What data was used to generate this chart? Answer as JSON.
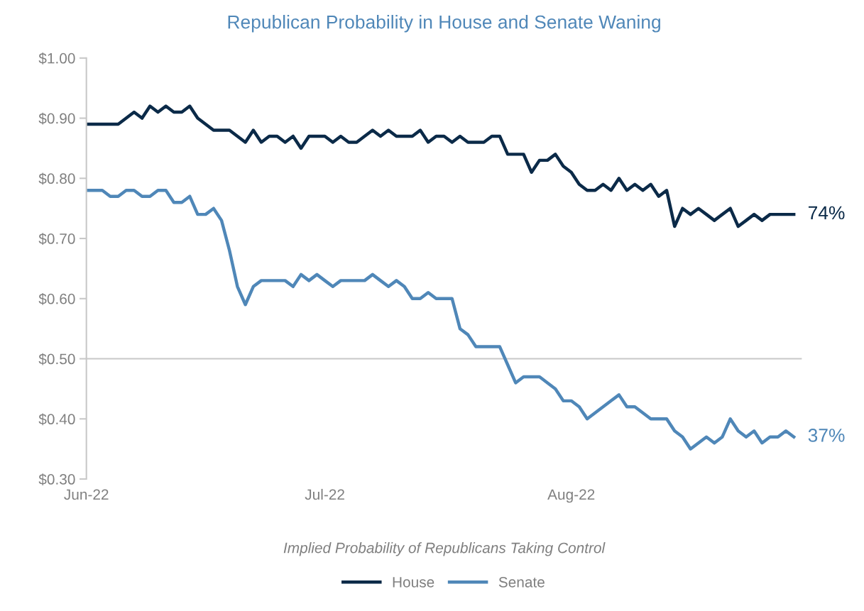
{
  "chart_data": {
    "type": "line",
    "title": "Republican Probability in House and Senate Waning",
    "xlabel": "Implied Probability of Republicans Taking Control",
    "x": [
      "2022-06-01",
      "2022-06-02",
      "2022-06-03",
      "2022-06-04",
      "2022-06-05",
      "2022-06-06",
      "2022-06-07",
      "2022-06-08",
      "2022-06-09",
      "2022-06-10",
      "2022-06-11",
      "2022-06-12",
      "2022-06-13",
      "2022-06-14",
      "2022-06-15",
      "2022-06-16",
      "2022-06-17",
      "2022-06-18",
      "2022-06-19",
      "2022-06-20",
      "2022-06-21",
      "2022-06-22",
      "2022-06-23",
      "2022-06-24",
      "2022-06-25",
      "2022-06-26",
      "2022-06-27",
      "2022-06-28",
      "2022-06-29",
      "2022-06-30",
      "2022-07-01",
      "2022-07-02",
      "2022-07-03",
      "2022-07-04",
      "2022-07-05",
      "2022-07-06",
      "2022-07-07",
      "2022-07-08",
      "2022-07-09",
      "2022-07-10",
      "2022-07-11",
      "2022-07-12",
      "2022-07-13",
      "2022-07-14",
      "2022-07-15",
      "2022-07-16",
      "2022-07-17",
      "2022-07-18",
      "2022-07-19",
      "2022-07-20",
      "2022-07-21",
      "2022-07-22",
      "2022-07-23",
      "2022-07-24",
      "2022-07-25",
      "2022-07-26",
      "2022-07-27",
      "2022-07-28",
      "2022-07-29",
      "2022-07-30",
      "2022-07-31",
      "2022-08-01",
      "2022-08-02",
      "2022-08-03",
      "2022-08-04",
      "2022-08-05",
      "2022-08-06",
      "2022-08-07",
      "2022-08-08",
      "2022-08-09",
      "2022-08-10",
      "2022-08-11",
      "2022-08-12",
      "2022-08-13",
      "2022-08-14",
      "2022-08-15",
      "2022-08-16",
      "2022-08-17",
      "2022-08-18",
      "2022-08-19",
      "2022-08-20",
      "2022-08-21",
      "2022-08-22",
      "2022-08-23",
      "2022-08-24",
      "2022-08-25",
      "2022-08-26",
      "2022-08-27",
      "2022-08-28",
      "2022-08-29"
    ],
    "series": [
      {
        "name": "House",
        "color": "#0b2a48",
        "values": [
          0.89,
          0.89,
          0.89,
          0.89,
          0.89,
          0.9,
          0.91,
          0.9,
          0.92,
          0.91,
          0.92,
          0.91,
          0.91,
          0.92,
          0.9,
          0.89,
          0.88,
          0.88,
          0.88,
          0.87,
          0.86,
          0.88,
          0.86,
          0.87,
          0.87,
          0.86,
          0.87,
          0.85,
          0.87,
          0.87,
          0.87,
          0.86,
          0.87,
          0.86,
          0.86,
          0.87,
          0.88,
          0.87,
          0.88,
          0.87,
          0.87,
          0.87,
          0.88,
          0.86,
          0.87,
          0.87,
          0.86,
          0.87,
          0.86,
          0.86,
          0.86,
          0.87,
          0.87,
          0.84,
          0.84,
          0.84,
          0.81,
          0.83,
          0.83,
          0.84,
          0.82,
          0.81,
          0.79,
          0.78,
          0.78,
          0.79,
          0.78,
          0.8,
          0.78,
          0.79,
          0.78,
          0.79,
          0.77,
          0.78,
          0.72,
          0.75,
          0.74,
          0.75,
          0.74,
          0.73,
          0.74,
          0.75,
          0.72,
          0.73,
          0.74,
          0.73,
          0.74,
          0.74,
          0.74,
          0.74
        ]
      },
      {
        "name": "Senate",
        "color": "#4f87b8",
        "values": [
          0.78,
          0.78,
          0.78,
          0.77,
          0.77,
          0.78,
          0.78,
          0.77,
          0.77,
          0.78,
          0.78,
          0.76,
          0.76,
          0.77,
          0.74,
          0.74,
          0.75,
          0.73,
          0.68,
          0.62,
          0.59,
          0.62,
          0.63,
          0.63,
          0.63,
          0.63,
          0.62,
          0.64,
          0.63,
          0.64,
          0.63,
          0.62,
          0.63,
          0.63,
          0.63,
          0.63,
          0.64,
          0.63,
          0.62,
          0.63,
          0.62,
          0.6,
          0.6,
          0.61,
          0.6,
          0.6,
          0.6,
          0.55,
          0.54,
          0.52,
          0.52,
          0.52,
          0.52,
          0.49,
          0.46,
          0.47,
          0.47,
          0.47,
          0.46,
          0.45,
          0.43,
          0.43,
          0.42,
          0.4,
          0.41,
          0.42,
          0.43,
          0.44,
          0.42,
          0.42,
          0.41,
          0.4,
          0.4,
          0.4,
          0.38,
          0.37,
          0.35,
          0.36,
          0.37,
          0.36,
          0.37,
          0.4,
          0.38,
          0.37,
          0.38,
          0.36,
          0.37,
          0.37,
          0.38,
          0.37
        ]
      }
    ],
    "annotations": [
      {
        "text": "74%",
        "x": "2022-08-29",
        "y": 0.74
      },
      {
        "text": "37%",
        "x": "2022-08-29",
        "y": 0.37
      }
    ],
    "xlim": [
      "2022-06-01",
      "2022-08-30"
    ],
    "xticks": [
      {
        "value": "2022-06-01",
        "label": "Jun-22"
      },
      {
        "value": "2022-07-01",
        "label": "Jul-22"
      },
      {
        "value": "2022-08-01",
        "label": "Aug-22"
      }
    ],
    "ylim": [
      0.3,
      1.0
    ],
    "yticks": [
      {
        "value": 0.3,
        "label": "$0.30"
      },
      {
        "value": 0.4,
        "label": "$0.40"
      },
      {
        "value": 0.5,
        "label": "$0.50"
      },
      {
        "value": 0.6,
        "label": "$0.60"
      },
      {
        "value": 0.7,
        "label": "$0.70"
      },
      {
        "value": 0.8,
        "label": "$0.80"
      },
      {
        "value": 0.9,
        "label": "$0.90"
      },
      {
        "value": 1.0,
        "label": "$1.00"
      }
    ],
    "ref_lines": [
      {
        "axis": "y",
        "value": 0.5,
        "color": "#c8c8c8"
      }
    ],
    "grid": false,
    "legend": "bottom",
    "marker": "none",
    "line_style": "solid"
  }
}
